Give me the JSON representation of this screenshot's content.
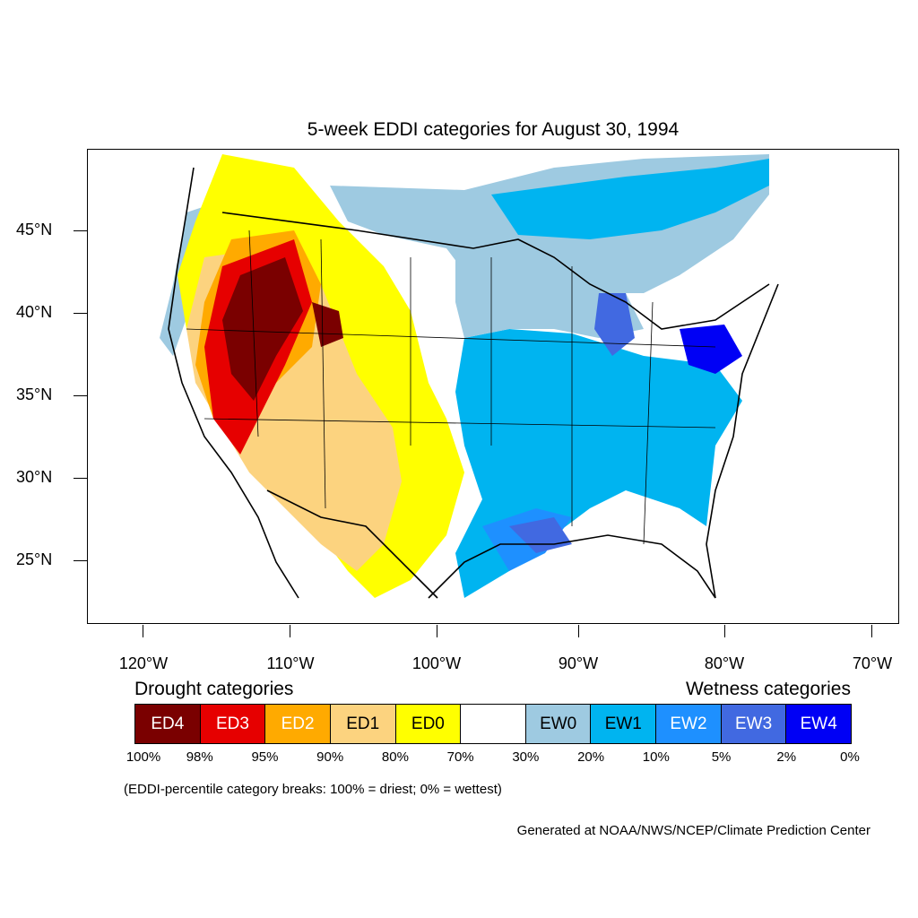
{
  "title": "5-week EDDI categories for August 30, 1994",
  "lat_labels": [
    "45°N",
    "40°N",
    "35°N",
    "30°N",
    "25°N"
  ],
  "lon_labels": [
    "120°W",
    "110°W",
    "100°W",
    "90°W",
    "80°W",
    "70°W"
  ],
  "legend": {
    "drought_heading": "Drought categories",
    "wetness_heading": "Wetness categories",
    "categories": [
      {
        "label": "ED4",
        "color": "#7a0000",
        "text_color": "#ffffff"
      },
      {
        "label": "ED3",
        "color": "#e60000",
        "text_color": "#ffffff"
      },
      {
        "label": "ED2",
        "color": "#ffaa00",
        "text_color": "#ffffff"
      },
      {
        "label": "ED1",
        "color": "#fcd37f",
        "text_color": "#000000"
      },
      {
        "label": "ED0",
        "color": "#ffff00",
        "text_color": "#000000"
      },
      {
        "label": "",
        "color": "#ffffff",
        "text_color": "#000000"
      },
      {
        "label": "EW0",
        "color": "#9ecae1",
        "text_color": "#000000"
      },
      {
        "label": "EW1",
        "color": "#00b4f0",
        "text_color": "#000000"
      },
      {
        "label": "EW2",
        "color": "#1e90ff",
        "text_color": "#ffffff"
      },
      {
        "label": "EW3",
        "color": "#4169e1",
        "text_color": "#ffffff"
      },
      {
        "label": "EW4",
        "color": "#0000f5",
        "text_color": "#ffffff"
      }
    ],
    "percentiles": [
      "100%",
      "98%",
      "95%",
      "90%",
      "80%",
      "70%",
      "30%",
      "20%",
      "10%",
      "5%",
      "2%",
      "0%"
    ]
  },
  "note": "(EDDI-percentile category breaks: 100% = driest; 0% = wettest)",
  "credit": "Generated at NOAA/NWS/NCEP/Climate Prediction Center"
}
